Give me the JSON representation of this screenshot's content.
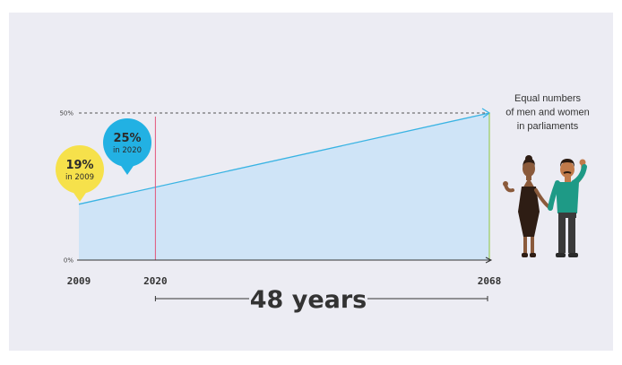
{
  "chart_data": {
    "type": "area",
    "title": "",
    "x_range": [
      2009,
      2068
    ],
    "y_range": [
      0,
      50
    ],
    "series": [
      {
        "x": [
          2009,
          2068
        ],
        "values": [
          19,
          50
        ]
      }
    ],
    "y_ticks": [
      {
        "value": 0,
        "label": "0%"
      },
      {
        "value": 50,
        "label": "50%"
      }
    ],
    "x_ticks": [
      {
        "value": 2009,
        "label": "2009"
      },
      {
        "value": 2020,
        "label": "2020"
      },
      {
        "value": 2068,
        "label": "2068"
      }
    ],
    "markers": [
      {
        "x": 2009,
        "value": 19,
        "pct_label": "19%",
        "year_label": "in 2009",
        "color": "#f6e14b"
      },
      {
        "x": 2020,
        "value": 25,
        "pct_label": "25%",
        "year_label": "in 2020",
        "color": "#22b1e3"
      }
    ],
    "span_label": "48 years",
    "span_from": 2020,
    "span_to": 2068,
    "goal_text": [
      "Equal numbers",
      "of men and women",
      "in parliaments"
    ],
    "colors": {
      "area_fill": "#cfe4f7",
      "trend_line": "#39b3e3",
      "axis": "#333333",
      "target_dash": "#555555",
      "marker_line_2020": "#e3557a",
      "end_line": "#8cc63f",
      "panel_bg": "#ececf3"
    }
  }
}
